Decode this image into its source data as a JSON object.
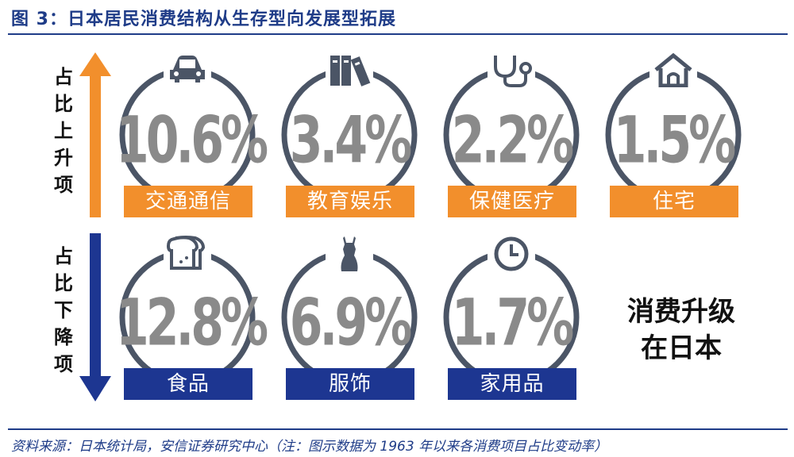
{
  "title": "图 3：日本居民消费结构从生存型向发展型拓展",
  "side_up": [
    "占",
    "比",
    "上",
    "升",
    "项"
  ],
  "side_down": [
    "占",
    "比",
    "下",
    "降",
    "项"
  ],
  "cards_up": [
    {
      "value": "10.6%",
      "label": "交通通信",
      "icon": "car-icon"
    },
    {
      "value": "3.4%",
      "label": "教育娱乐",
      "icon": "books-icon"
    },
    {
      "value": "2.2%",
      "label": "保健医疗",
      "icon": "stethoscope-icon"
    },
    {
      "value": "1.5%",
      "label": "住宅",
      "icon": "house-icon"
    }
  ],
  "cards_down": [
    {
      "value": "12.8%",
      "label": "食品",
      "icon": "bread-icon"
    },
    {
      "value": "6.9%",
      "label": "服饰",
      "icon": "dress-icon"
    },
    {
      "value": "1.7%",
      "label": "家用品",
      "icon": "clock-icon"
    }
  ],
  "slogan": [
    "消费升级",
    "在日本"
  ],
  "source": "资料来源：日本统计局，安信证券研究中心（注：图示数据为 1963 年以来各消费项目占比变动率）",
  "colors": {
    "accent_up": "#f28f2c",
    "accent_down": "#1d3691",
    "ring": "#4b5566",
    "title": "#1f3c88"
  }
}
